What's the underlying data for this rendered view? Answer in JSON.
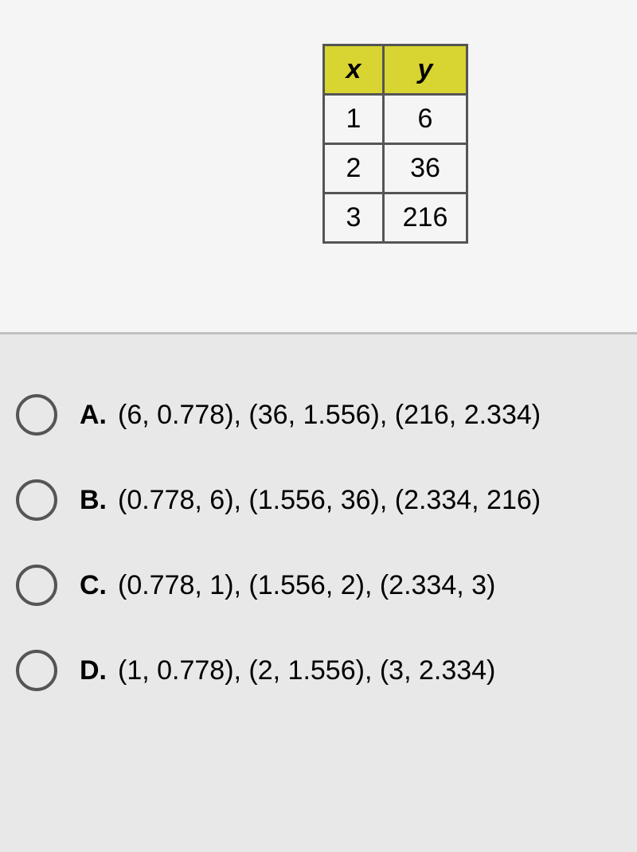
{
  "table": {
    "header_bg_color": "#d8d432",
    "border_color": "#555555",
    "columns": [
      "x",
      "y"
    ],
    "rows": [
      [
        "1",
        "6"
      ],
      [
        "2",
        "36"
      ],
      [
        "3",
        "216"
      ]
    ]
  },
  "answers": [
    {
      "label": "A.",
      "text": "(6, 0.778), (36, 1.556), (216, 2.334)"
    },
    {
      "label": "B.",
      "text": "(0.778, 6), (1.556, 36), (2.334, 216)"
    },
    {
      "label": "C.",
      "text": "(0.778, 1), (1.556, 2), (2.334, 3)"
    },
    {
      "label": "D.",
      "text": "(1, 0.778), (2, 1.556), (3, 2.334)"
    }
  ],
  "page_bg_color": "#e8e8e8",
  "top_bg_color": "#f5f5f5",
  "font_size_table": 34,
  "font_size_answer": 34
}
